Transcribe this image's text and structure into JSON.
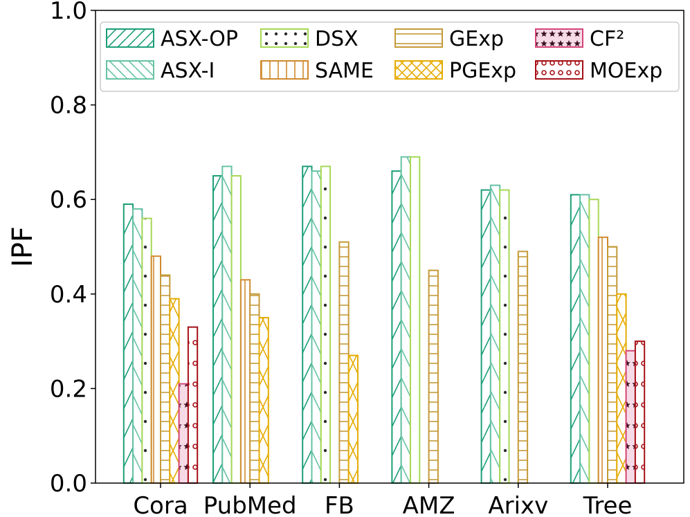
{
  "chart_data": {
    "type": "bar",
    "title": "",
    "xlabel": "",
    "ylabel": "IPF",
    "ylim": [
      0,
      1.0
    ],
    "yticks": [
      "0.0",
      "0.2",
      "0.4",
      "0.6",
      "0.8",
      "1.0"
    ],
    "grid": false,
    "legend_position": "top",
    "categories": [
      "Cora",
      "PubMed",
      "FB",
      "AMZ",
      "Arixv",
      "Tree"
    ],
    "series": [
      {
        "name": "ASX-OP",
        "color": "#1b9e77",
        "hatch": "diag-up",
        "values": [
          0.59,
          0.65,
          0.67,
          0.66,
          0.62,
          0.61
        ]
      },
      {
        "name": "ASX-I",
        "color": "#66c2a5",
        "hatch": "diag-down",
        "values": [
          0.58,
          0.67,
          0.66,
          0.69,
          0.63,
          0.61
        ]
      },
      {
        "name": "DSX",
        "color": "#a6d854",
        "hatch": "dots",
        "values": [
          0.56,
          0.65,
          0.67,
          0.69,
          0.62,
          0.6
        ]
      },
      {
        "name": "SAME",
        "color": "#d08a2e",
        "hatch": "vertical",
        "values": [
          0.48,
          0.43,
          0.0,
          0.0,
          0.0,
          0.52
        ]
      },
      {
        "name": "GExp",
        "color": "#c49a38",
        "hatch": "horizontal",
        "values": [
          0.44,
          0.4,
          0.51,
          0.45,
          0.49,
          0.5
        ]
      },
      {
        "name": "PGExp",
        "color": "#e6ab02",
        "hatch": "cross",
        "values": [
          0.39,
          0.35,
          0.27,
          0.0,
          0.0,
          0.4
        ]
      },
      {
        "name": "CF²",
        "color": "#d6457a",
        "hatch": "stars",
        "values": [
          0.21,
          0.0,
          0.0,
          0.0,
          0.0,
          0.28
        ]
      },
      {
        "name": "MOExp",
        "color": "#a50f15",
        "hatch": "circles",
        "values": [
          0.33,
          0.0,
          0.0,
          0.0,
          0.0,
          0.3
        ]
      }
    ]
  }
}
